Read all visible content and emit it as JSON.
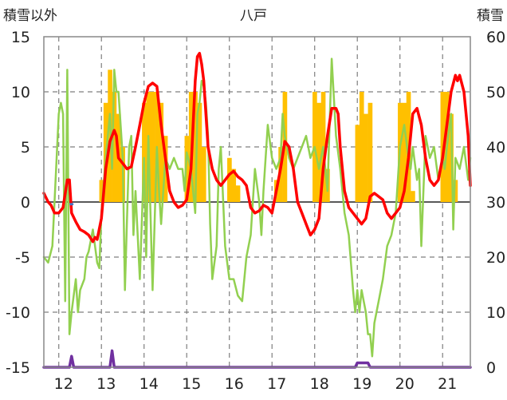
{
  "chart_data": {
    "type": "line",
    "title": "八戸",
    "left_axis_title": "積雪以外",
    "right_axis_title": "積雪",
    "left_ylim": [
      -15,
      15
    ],
    "right_ylim": [
      0,
      60
    ],
    "left_ticks": [
      "15",
      "10",
      "5",
      "0",
      "-5",
      "-10",
      "-15"
    ],
    "right_ticks": [
      "60",
      "50",
      "40",
      "30",
      "20",
      "10",
      "0"
    ],
    "x_ticks": [
      "12",
      "13",
      "14",
      "15",
      "16",
      "17",
      "18",
      "19",
      "20",
      "21"
    ],
    "x_range": [
      11.45,
      21.45
    ],
    "grid": true,
    "series": [
      {
        "kind": "bar",
        "axis": "left",
        "color": "#FFC000",
        "points": [
          [
            12.8,
            2
          ],
          [
            12.9,
            9
          ],
          [
            13.0,
            12
          ],
          [
            13.1,
            10
          ],
          [
            13.2,
            8
          ],
          [
            13.3,
            5
          ],
          [
            13.8,
            9
          ],
          [
            13.9,
            10
          ],
          [
            14.0,
            10
          ],
          [
            14.1,
            10
          ],
          [
            14.2,
            9
          ],
          [
            14.3,
            6
          ],
          [
            14.8,
            6
          ],
          [
            14.9,
            10
          ],
          [
            15.0,
            10
          ],
          [
            15.1,
            9
          ],
          [
            15.2,
            5
          ],
          [
            15.8,
            4
          ],
          [
            15.9,
            3
          ],
          [
            16.0,
            1.5
          ],
          [
            16.9,
            2
          ],
          [
            17.0,
            5
          ],
          [
            17.1,
            10
          ],
          [
            17.8,
            10
          ],
          [
            17.9,
            9
          ],
          [
            18.0,
            10
          ],
          [
            18.1,
            3
          ],
          [
            18.8,
            7
          ],
          [
            18.9,
            10
          ],
          [
            19.0,
            8
          ],
          [
            19.1,
            9
          ],
          [
            19.8,
            9
          ],
          [
            19.9,
            9
          ],
          [
            20.0,
            10
          ],
          [
            20.1,
            1
          ],
          [
            20.8,
            10
          ],
          [
            20.9,
            10
          ],
          [
            21.0,
            8
          ],
          [
            21.1,
            2
          ]
        ]
      },
      {
        "kind": "line",
        "axis": "left",
        "color": "#FF0000",
        "width": 3.5,
        "points": [
          [
            11.45,
            0.8
          ],
          [
            11.55,
            0
          ],
          [
            11.62,
            -0.3
          ],
          [
            11.7,
            -1
          ],
          [
            11.8,
            -1
          ],
          [
            11.9,
            -0.5
          ],
          [
            12.0,
            2
          ],
          [
            12.05,
            2
          ],
          [
            12.1,
            -1
          ],
          [
            12.2,
            -1.8
          ],
          [
            12.3,
            -2.5
          ],
          [
            12.4,
            -2.7
          ],
          [
            12.5,
            -3.0
          ],
          [
            12.6,
            -3.6
          ],
          [
            12.65,
            -3.2
          ],
          [
            12.7,
            -3.4
          ],
          [
            12.8,
            -1.5
          ],
          [
            12.9,
            3
          ],
          [
            13.0,
            5.5
          ],
          [
            13.1,
            6.5
          ],
          [
            13.15,
            6.0
          ],
          [
            13.2,
            4
          ],
          [
            13.3,
            3.5
          ],
          [
            13.4,
            3.0
          ],
          [
            13.5,
            3.2
          ],
          [
            13.6,
            5
          ],
          [
            13.7,
            7
          ],
          [
            13.8,
            9
          ],
          [
            13.9,
            10.5
          ],
          [
            14.0,
            10.8
          ],
          [
            14.1,
            10.5
          ],
          [
            14.2,
            7
          ],
          [
            14.3,
            4
          ],
          [
            14.4,
            1
          ],
          [
            14.5,
            0
          ],
          [
            14.6,
            -0.5
          ],
          [
            14.7,
            -0.3
          ],
          [
            14.8,
            0.2
          ],
          [
            14.9,
            3
          ],
          [
            15.0,
            11
          ],
          [
            15.05,
            13.2
          ],
          [
            15.1,
            13.5
          ],
          [
            15.15,
            12.5
          ],
          [
            15.2,
            11
          ],
          [
            15.25,
            8
          ],
          [
            15.3,
            5
          ],
          [
            15.4,
            3
          ],
          [
            15.5,
            2
          ],
          [
            15.6,
            1.5
          ],
          [
            15.7,
            2
          ],
          [
            15.8,
            2.5
          ],
          [
            15.9,
            2.8
          ],
          [
            16.0,
            2.3
          ],
          [
            16.1,
            2
          ],
          [
            16.2,
            1.5
          ],
          [
            16.3,
            -0.5
          ],
          [
            16.4,
            -1
          ],
          [
            16.5,
            -0.8
          ],
          [
            16.6,
            -0.3
          ],
          [
            16.7,
            -0.5
          ],
          [
            16.8,
            -1
          ],
          [
            16.9,
            1
          ],
          [
            17.0,
            3
          ],
          [
            17.1,
            5.5
          ],
          [
            17.2,
            5
          ],
          [
            17.3,
            3
          ],
          [
            17.4,
            0
          ],
          [
            17.5,
            -1
          ],
          [
            17.6,
            -2
          ],
          [
            17.7,
            -3
          ],
          [
            17.8,
            -2.5
          ],
          [
            17.9,
            -1.5
          ],
          [
            18.0,
            3
          ],
          [
            18.1,
            6
          ],
          [
            18.2,
            8.5
          ],
          [
            18.3,
            8.5
          ],
          [
            18.35,
            8
          ],
          [
            18.4,
            5
          ],
          [
            18.5,
            1
          ],
          [
            18.6,
            -0.5
          ],
          [
            18.7,
            -1
          ],
          [
            18.8,
            -1.5
          ],
          [
            18.9,
            -2
          ],
          [
            19.0,
            -1.5
          ],
          [
            19.1,
            0.5
          ],
          [
            19.2,
            0.8
          ],
          [
            19.3,
            0.5
          ],
          [
            19.4,
            0.2
          ],
          [
            19.5,
            -1
          ],
          [
            19.6,
            -1.5
          ],
          [
            19.7,
            -1
          ],
          [
            19.8,
            -0.5
          ],
          [
            19.9,
            1
          ],
          [
            20.0,
            4
          ],
          [
            20.1,
            8
          ],
          [
            20.2,
            8.5
          ],
          [
            20.3,
            7
          ],
          [
            20.4,
            4
          ],
          [
            20.5,
            2
          ],
          [
            20.6,
            1.5
          ],
          [
            20.7,
            2
          ],
          [
            20.8,
            4
          ],
          [
            20.9,
            7
          ],
          [
            21.0,
            10
          ],
          [
            21.1,
            11.5
          ],
          [
            21.15,
            11
          ],
          [
            21.2,
            11.5
          ],
          [
            21.3,
            10
          ],
          [
            21.4,
            6
          ],
          [
            21.45,
            1.5
          ]
        ]
      },
      {
        "kind": "line",
        "axis": "left",
        "color": "#92D050",
        "width": 2.5,
        "points": [
          [
            11.45,
            -5
          ],
          [
            11.55,
            -5.5
          ],
          [
            11.65,
            -4
          ],
          [
            11.7,
            0
          ],
          [
            11.8,
            8
          ],
          [
            11.85,
            9
          ],
          [
            11.9,
            8
          ],
          [
            11.95,
            -9
          ],
          [
            12.0,
            12
          ],
          [
            12.05,
            -12
          ],
          [
            12.1,
            -10
          ],
          [
            12.2,
            -7
          ],
          [
            12.25,
            -10
          ],
          [
            12.3,
            -8
          ],
          [
            12.4,
            -7
          ],
          [
            12.45,
            -5
          ],
          [
            12.5,
            -4.5
          ],
          [
            12.6,
            -2.5
          ],
          [
            12.7,
            -5.5
          ],
          [
            12.75,
            -6
          ],
          [
            12.8,
            -1
          ],
          [
            12.9,
            4
          ],
          [
            13.0,
            8
          ],
          [
            13.05,
            3
          ],
          [
            13.1,
            12
          ],
          [
            13.15,
            10
          ],
          [
            13.2,
            10
          ],
          [
            13.3,
            4
          ],
          [
            13.35,
            -8
          ],
          [
            13.45,
            5
          ],
          [
            13.5,
            6
          ],
          [
            13.55,
            -3
          ],
          [
            13.6,
            1
          ],
          [
            13.7,
            -7
          ],
          [
            13.8,
            4
          ],
          [
            13.85,
            -5
          ],
          [
            13.9,
            6
          ],
          [
            14.0,
            -8
          ],
          [
            14.1,
            5
          ],
          [
            14.15,
            1
          ],
          [
            14.2,
            -2
          ],
          [
            14.3,
            4
          ],
          [
            14.4,
            3
          ],
          [
            14.5,
            4
          ],
          [
            14.6,
            3
          ],
          [
            14.7,
            3
          ],
          [
            14.75,
            1
          ],
          [
            14.8,
            4.5
          ],
          [
            14.9,
            3
          ],
          [
            15.0,
            -1
          ],
          [
            15.05,
            8
          ],
          [
            15.1,
            9
          ],
          [
            15.15,
            11
          ],
          [
            15.2,
            10.5
          ],
          [
            15.25,
            9
          ],
          [
            15.3,
            6
          ],
          [
            15.35,
            -2
          ],
          [
            15.4,
            -7
          ],
          [
            15.5,
            -4
          ],
          [
            15.55,
            3
          ],
          [
            15.6,
            5
          ],
          [
            15.7,
            -4
          ],
          [
            15.8,
            -7
          ],
          [
            15.9,
            -7
          ],
          [
            16.0,
            -8.5
          ],
          [
            16.1,
            -9
          ],
          [
            16.2,
            -5
          ],
          [
            16.3,
            -3
          ],
          [
            16.4,
            3
          ],
          [
            16.5,
            0
          ],
          [
            16.55,
            -3
          ],
          [
            16.6,
            1
          ],
          [
            16.7,
            7
          ],
          [
            16.8,
            4
          ],
          [
            16.9,
            3
          ],
          [
            17.0,
            4
          ],
          [
            17.05,
            8
          ],
          [
            17.1,
            6
          ],
          [
            17.2,
            4
          ],
          [
            17.3,
            3
          ],
          [
            17.4,
            4
          ],
          [
            17.5,
            5
          ],
          [
            17.6,
            6
          ],
          [
            17.7,
            4
          ],
          [
            17.8,
            5
          ],
          [
            17.9,
            3
          ],
          [
            18.0,
            5
          ],
          [
            18.05,
            3
          ],
          [
            18.1,
            1
          ],
          [
            18.2,
            13
          ],
          [
            18.3,
            6
          ],
          [
            18.4,
            3
          ],
          [
            18.5,
            -1
          ],
          [
            18.6,
            -3
          ],
          [
            18.7,
            -8
          ],
          [
            18.75,
            -10
          ],
          [
            18.8,
            -8
          ],
          [
            18.85,
            -10
          ],
          [
            18.9,
            -8
          ],
          [
            19.0,
            -10
          ],
          [
            19.05,
            -12
          ],
          [
            19.1,
            -12
          ],
          [
            19.15,
            -14
          ],
          [
            19.2,
            -11
          ],
          [
            19.3,
            -9
          ],
          [
            19.4,
            -7
          ],
          [
            19.5,
            -4
          ],
          [
            19.6,
            -3
          ],
          [
            19.7,
            -1
          ],
          [
            19.8,
            5
          ],
          [
            19.9,
            7
          ],
          [
            20.0,
            4
          ],
          [
            20.05,
            3
          ],
          [
            20.1,
            5
          ],
          [
            20.2,
            2
          ],
          [
            20.25,
            3
          ],
          [
            20.3,
            -4
          ],
          [
            20.4,
            6
          ],
          [
            20.5,
            4
          ],
          [
            20.6,
            5
          ],
          [
            20.7,
            2
          ],
          [
            20.75,
            3
          ],
          [
            20.8,
            4
          ],
          [
            20.85,
            3
          ],
          [
            20.9,
            5
          ],
          [
            21.0,
            8
          ],
          [
            21.05,
            -2.5
          ],
          [
            21.1,
            4
          ],
          [
            21.2,
            3
          ],
          [
            21.3,
            5
          ],
          [
            21.4,
            2
          ],
          [
            21.45,
            4
          ]
        ]
      },
      {
        "kind": "line",
        "axis": "left",
        "color": "#7030A0",
        "width": 3.5,
        "points": [
          [
            11.45,
            -15
          ],
          [
            12.05,
            -15
          ],
          [
            12.1,
            -14
          ],
          [
            12.15,
            -15
          ],
          [
            13.0,
            -15
          ],
          [
            13.05,
            -13.5
          ],
          [
            13.1,
            -15
          ],
          [
            18.75,
            -15
          ],
          [
            18.8,
            -14.6
          ],
          [
            19.05,
            -14.6
          ],
          [
            19.1,
            -15
          ],
          [
            21.45,
            -15
          ]
        ]
      },
      {
        "kind": "line",
        "axis": "left",
        "color": "#4472C4",
        "width": 3,
        "points": [
          [
            12.08,
            -0.2
          ],
          [
            12.12,
            -0.2
          ]
        ]
      }
    ]
  }
}
